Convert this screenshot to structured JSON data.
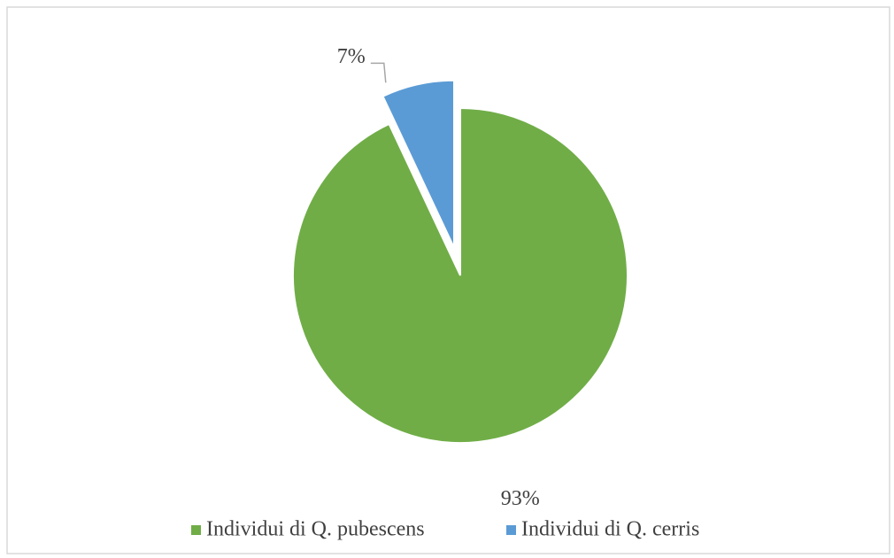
{
  "chart_data": {
    "type": "pie",
    "categories": [
      "Individui di Q. pubescens",
      "Individui di Q. cerris"
    ],
    "values": [
      93,
      7
    ],
    "value_labels": [
      "93%",
      "7%"
    ],
    "colors": [
      "#70ad47",
      "#5b9bd5"
    ],
    "exploded": [
      false,
      true
    ],
    "legend": "bottom"
  }
}
